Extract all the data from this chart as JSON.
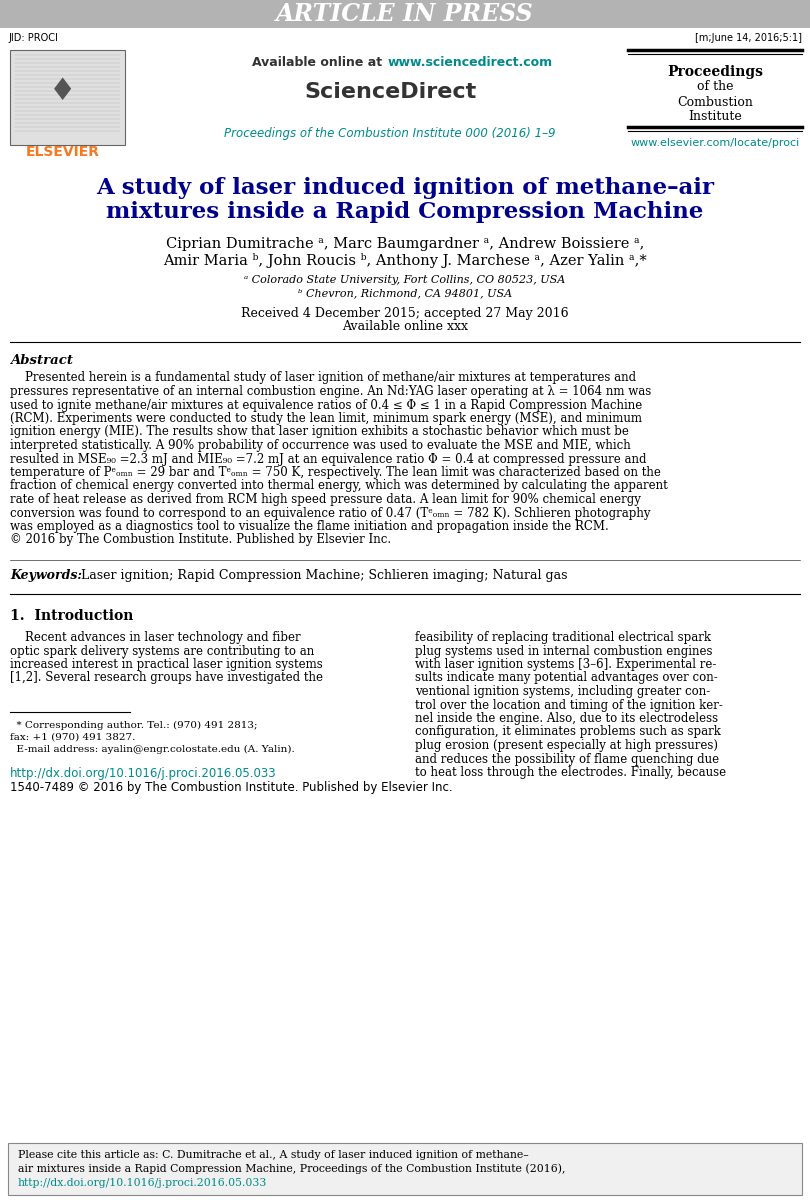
{
  "header_bar_color": "#b3b3b3",
  "header_bar_text": "ARTICLE IN PRESS",
  "header_bar_text_color": "#ffffff",
  "jid_text": "JID: PROCI",
  "jid_right_text": "[m;June 14, 2016;5:1]",
  "available_online_text": "Available online at ",
  "sciencedirect_url": "www.sciencedirect.com",
  "sciencedirect_title": "ScienceDirect",
  "journal_ref_cyan": "Proceedings of the Combustion Institute 000 (2016) 1–9",
  "elsevier_url_cyan": "www.elsevier.com/locate/proci",
  "elsevier_color": "#f47920",
  "cyan_color": "#008B8B",
  "paper_title_line1": "A study of laser induced ignition of methane–air",
  "paper_title_line2": "mixtures inside a Rapid Compression Machine",
  "affil_a": "ᵃ Colorado State University, Fort Collins, CO 80523, USA",
  "affil_b": "ᵇ Chevron, Richmond, CA 94801, USA",
  "received_text_1": "Received 4 December 2015; accepted 27 May 2016",
  "received_text_2": "Available online xxx",
  "abstract_title": "Abstract",
  "keywords_label": "Keywords:",
  "keywords_text": "  Laser ignition; Rapid Compression Machine; Schlieren imaging; Natural gas",
  "section1_title": "1.  Introduction",
  "bg_color": "#ffffff",
  "text_color": "#000000",
  "title_color": "#00008B",
  "abstract_lines": [
    "    Presented herein is a fundamental study of laser ignition of methane/air mixtures at temperatures and",
    "pressures representative of an internal combustion engine. An Nd:YAG laser operating at λ = 1064 nm was",
    "used to ignite methane/air mixtures at equivalence ratios of 0.4 ≤ Φ ≤ 1 in a Rapid Compression Machine",
    "(RCM). Experiments were conducted to study the lean limit, minimum spark energy (MSE), and minimum",
    "ignition energy (MIE). The results show that laser ignition exhibits a stochastic behavior which must be",
    "interpreted statistically. A 90% probability of occurrence was used to evaluate the MSE and MIE, which",
    "resulted in MSE₉₀ =2.3 mJ and MIE₉₀ =7.2 mJ at an equivalence ratio Φ = 0.4 at compressed pressure and",
    "temperature of Pᵉₒₘₙ = 29 bar and Tᵉₒₘₙ = 750 K, respectively. The lean limit was characterized based on the",
    "fraction of chemical energy converted into thermal energy, which was determined by calculating the apparent",
    "rate of heat release as derived from RCM high speed pressure data. A lean limit for 90% chemical energy",
    "conversion was found to correspond to an equivalence ratio of 0.47 (Tᵉₒₘₙ = 782 K). Schlieren photography",
    "was employed as a diagnostics tool to visualize the flame initiation and propagation inside the RCM.",
    "© 2016 by The Combustion Institute. Published by Elsevier Inc."
  ],
  "intro_col1_lines": [
    "    Recent advances in laser technology and fiber",
    "optic spark delivery systems are contributing to an",
    "increased interest in practical laser ignition systems",
    "[1,2]. Several research groups have investigated the"
  ],
  "intro_col2_lines": [
    "feasibility of replacing traditional electrical spark",
    "plug systems used in internal combustion engines",
    "with laser ignition systems [3–6]. Experimental re-",
    "sults indicate many potential advantages over con-",
    "ventional ignition systems, including greater con-",
    "trol over the location and timing of the ignition ker-",
    "nel inside the engine. Also, due to its electrodeless",
    "configuration, it eliminates problems such as spark",
    "plug erosion (present especially at high pressures)",
    "and reduces the possibility of flame quenching due",
    "to heat loss through the electrodes. Finally, because"
  ],
  "footnote_lines": [
    "  * Corresponding author. Tel.: (970) 491 2813;",
    "fax: +1 (970) 491 3827.",
    "  E-mail address: ayalin@engr.colostate.edu (A. Yalin)."
  ],
  "doi_line1": "http://dx.doi.org/10.1016/j.proci.2016.05.033",
  "doi_line2": "1540-7489 © 2016 by The Combustion Institute. Published by Elsevier Inc.",
  "cite_line1": "Please cite this article as: C. Dumitrache et al., A study of laser induced ignition of methane–",
  "cite_line2": "air mixtures inside a Rapid Compression Machine, Proceedings of the Combustion Institute (2016),",
  "cite_line3": "http://dx.doi.org/10.1016/j.proci.2016.05.033"
}
